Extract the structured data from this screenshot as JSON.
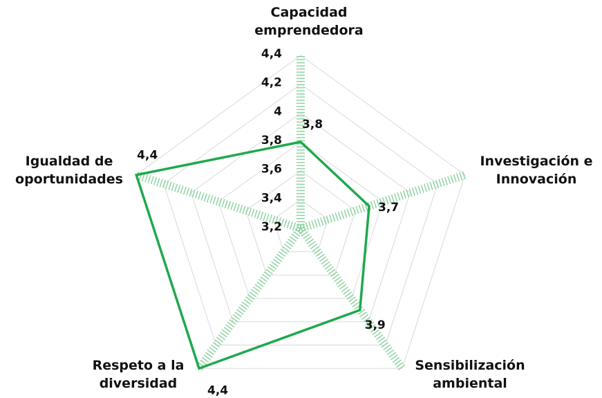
{
  "chart_data": {
    "type": "radar",
    "categories": [
      "Capacidad emprendedora",
      "Investigación e Innovación",
      "Sensibilización ambiental",
      "Respeto a la diversidad",
      "Igualdad de oportunidades"
    ],
    "values": [
      3.8,
      3.7,
      3.9,
      4.4,
      4.4
    ],
    "value_labels": [
      "3,8",
      "3,7",
      "3,9",
      "4,4",
      "4,4"
    ],
    "color": "#1ea94c",
    "ylim": [
      3.2,
      4.4
    ],
    "yticks": [
      {
        "value": 3.2,
        "label": "3,2"
      },
      {
        "value": 3.4,
        "label": "3,4"
      },
      {
        "value": 3.6,
        "label": "3,6"
      },
      {
        "value": 3.8,
        "label": "3,8"
      },
      4,
      {
        "value": 4.2,
        "label": "4,2"
      },
      {
        "value": 4.4,
        "label": "4,4"
      }
    ],
    "grid": true
  }
}
